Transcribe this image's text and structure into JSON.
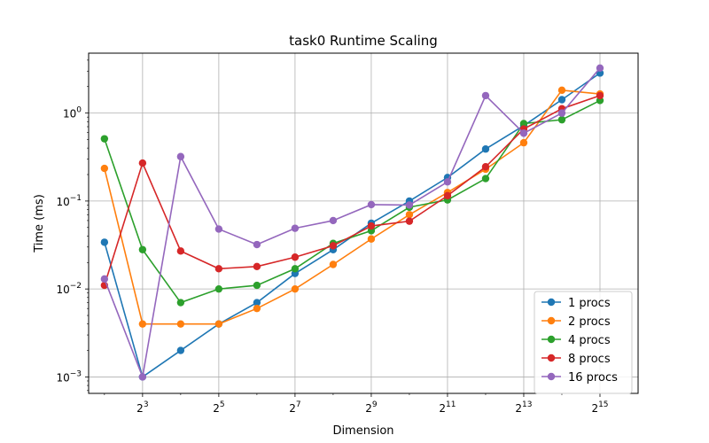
{
  "chart_data": {
    "type": "line",
    "title": "task0 Runtime Scaling",
    "xlabel": "Dimension",
    "ylabel": "Time (ms)",
    "xscale": "log2",
    "yscale": "log10",
    "xlim": [
      3.0,
      65536.0
    ],
    "ylim": [
      0.00065,
      4.8
    ],
    "grid": true,
    "legend_position": "lower-right",
    "x": [
      4,
      8,
      16,
      32,
      64,
      128,
      256,
      512,
      1024,
      2048,
      4096,
      8192,
      16384,
      32768
    ],
    "x_tick_labels": [
      {
        "base": "2",
        "exp": "3",
        "value": 8
      },
      {
        "base": "2",
        "exp": "5",
        "value": 32
      },
      {
        "base": "2",
        "exp": "7",
        "value": 128
      },
      {
        "base": "2",
        "exp": "9",
        "value": 512
      },
      {
        "base": "2",
        "exp": "11",
        "value": 2048
      },
      {
        "base": "2",
        "exp": "13",
        "value": 8192
      },
      {
        "base": "2",
        "exp": "15",
        "value": 32768
      }
    ],
    "y_tick_labels": [
      {
        "base": "10",
        "exp": "−3",
        "value": 0.001
      },
      {
        "base": "10",
        "exp": "−2",
        "value": 0.01
      },
      {
        "base": "10",
        "exp": "−1",
        "value": 0.1
      },
      {
        "base": "10",
        "exp": "0",
        "value": 1
      }
    ],
    "series": [
      {
        "name": "1 procs",
        "color": "#1f77b4",
        "values": [
          0.034,
          0.001,
          0.002,
          0.004,
          0.007,
          0.015,
          0.028,
          0.056,
          0.1,
          0.185,
          0.39,
          0.72,
          1.42,
          2.85
        ]
      },
      {
        "name": "2 procs",
        "color": "#ff7f0e",
        "values": [
          0.235,
          0.004,
          0.004,
          0.004,
          0.006,
          0.01,
          0.019,
          0.037,
          0.07,
          0.125,
          0.23,
          0.46,
          1.82,
          1.65
        ]
      },
      {
        "name": "4 procs",
        "color": "#2ca02c",
        "values": [
          0.51,
          0.028,
          0.007,
          0.01,
          0.011,
          0.017,
          0.033,
          0.046,
          0.085,
          0.103,
          0.18,
          0.76,
          0.84,
          1.39
        ]
      },
      {
        "name": "8 procs",
        "color": "#d62728",
        "values": [
          0.011,
          0.27,
          0.027,
          0.017,
          0.018,
          0.023,
          0.031,
          0.052,
          0.059,
          0.115,
          0.245,
          0.66,
          1.12,
          1.58
        ]
      },
      {
        "name": "16 procs",
        "color": "#9467bd",
        "values": [
          0.013,
          0.001,
          0.32,
          0.048,
          0.032,
          0.049,
          0.06,
          0.091,
          0.09,
          0.165,
          1.58,
          0.59,
          1.0,
          3.25
        ]
      }
    ]
  }
}
